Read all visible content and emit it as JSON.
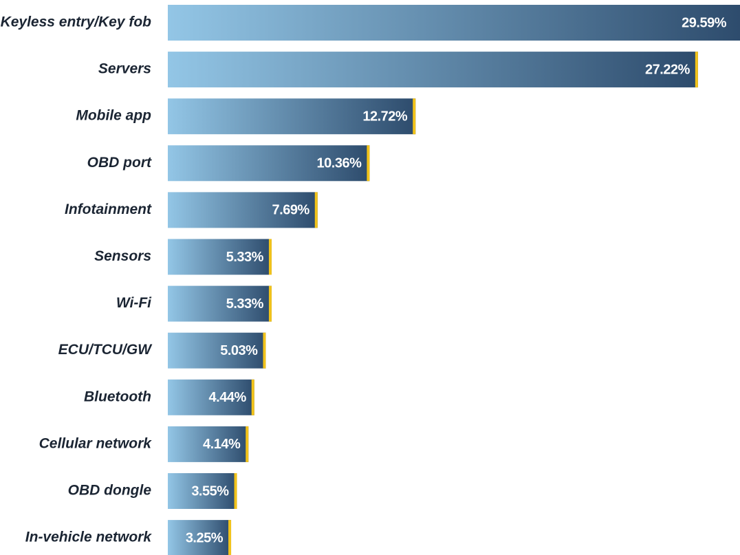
{
  "chart_data": {
    "type": "bar",
    "orientation": "horizontal",
    "categories": [
      "Keyless entry/Key fob",
      "Servers",
      "Mobile app",
      "OBD port",
      "Infotainment",
      "Sensors",
      "Wi-Fi",
      "ECU/TCU/GW",
      "Bluetooth",
      "Cellular network",
      "OBD dongle",
      "In-vehicle network"
    ],
    "values": [
      29.59,
      27.22,
      12.72,
      10.36,
      7.69,
      5.33,
      5.33,
      5.03,
      4.44,
      4.14,
      3.55,
      3.25
    ],
    "value_labels": [
      "29.59%",
      "27.22%",
      "12.72%",
      "10.36%",
      "7.69%",
      "5.33%",
      "5.33%",
      "5.03%",
      "4.44%",
      "4.14%",
      "3.55%",
      "3.25%"
    ],
    "gradient": [
      "#93c6e6",
      "#2d4b6c"
    ],
    "accent_color": "#f2c31a"
  }
}
